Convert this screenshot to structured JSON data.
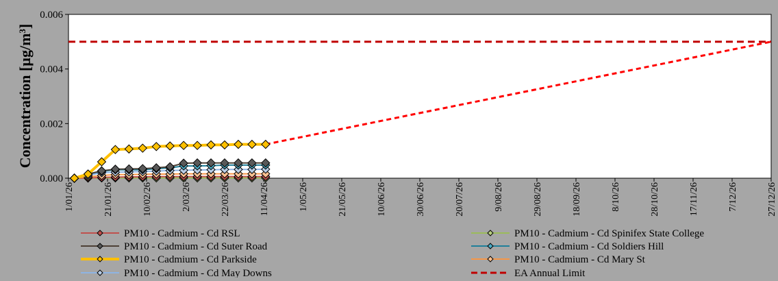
{
  "chart_data": {
    "type": "line",
    "title": "",
    "ylabel_main": "Concentration [µg/m",
    "ylabel_sup": "3",
    "ylabel_close": "]",
    "xlabel": "",
    "ylim": [
      0,
      0.006
    ],
    "yticks": [
      "0.000",
      "0.002",
      "0.004",
      "0.006"
    ],
    "ytick_values": [
      0,
      0.002,
      0.004,
      0.006
    ],
    "xlim": [
      "2026-01-01",
      "2026-12-27"
    ],
    "xtick_labels": [
      "1/01/26",
      "21/01/26",
      "10/02/26",
      "2/03/26",
      "22/03/26",
      "11/04/26",
      "1/05/26",
      "21/05/26",
      "10/06/26",
      "30/06/26",
      "20/07/26",
      "9/08/26",
      "29/08/26",
      "18/09/26",
      "8/10/26",
      "28/10/26",
      "17/11/26",
      "7/12/26",
      "27/12/26"
    ],
    "xtick_dates": [
      "2026-01-01",
      "2026-01-21",
      "2026-02-10",
      "2026-03-02",
      "2026-03-22",
      "2026-04-11",
      "2026-05-01",
      "2026-05-21",
      "2026-06-10",
      "2026-06-30",
      "2026-07-20",
      "2026-08-09",
      "2026-08-29",
      "2026-09-18",
      "2026-10-08",
      "2026-10-28",
      "2026-11-17",
      "2026-12-07",
      "2026-12-27"
    ],
    "grid": false,
    "legend_position": "bottom",
    "x": [
      "2026-01-04",
      "2026-01-11",
      "2026-01-18",
      "2026-01-25",
      "2026-02-01",
      "2026-02-08",
      "2026-02-15",
      "2026-02-22",
      "2026-03-01",
      "2026-03-08",
      "2026-03-15",
      "2026-03-22",
      "2026-03-29",
      "2026-04-05",
      "2026-04-12"
    ],
    "series": [
      {
        "name": "PM10 - Cadmium - Cd RSL",
        "color": "#c0504d",
        "marker_fill": "#c0504d",
        "line_width": 2,
        "values": [
          0,
          1e-05,
          3e-05,
          4e-05,
          5e-05,
          5e-05,
          6e-05,
          6e-05,
          6e-05,
          6e-05,
          6e-05,
          6e-05,
          6e-05,
          6e-05,
          6e-05
        ]
      },
      {
        "name": "PM10 - Cadmium - Cd Spinifex State College",
        "color": "#9bbb59",
        "marker_fill": "#b7cf80",
        "line_width": 2,
        "values": [
          0,
          5e-06,
          1e-05,
          1e-05,
          1e-05,
          1e-05,
          1e-05,
          1e-05,
          1e-05,
          1e-05,
          1e-05,
          1e-05,
          1e-05,
          1e-05,
          1e-05
        ]
      },
      {
        "name": "PM10 - Cadmium - Cd Suter Road",
        "color": "#4d4136",
        "marker_fill": "#595959",
        "line_width": 2,
        "values": [
          0,
          0.00015,
          0.00027,
          0.00033,
          0.00034,
          0.00035,
          0.00038,
          0.00042,
          0.00055,
          0.00056,
          0.00056,
          0.00056,
          0.00056,
          0.00056,
          0.00056
        ]
      },
      {
        "name": "PM10 - Cadmium - Cd Soldiers Hill",
        "color": "#1f7f9a",
        "marker_fill": "#4bacc6",
        "line_width": 2,
        "values": [
          0,
          0.00015,
          0.00025,
          0.00031,
          0.00031,
          0.00031,
          0.00035,
          0.00038,
          0.00045,
          0.00045,
          0.00046,
          0.00048,
          0.00048,
          0.00048,
          0.00048
        ]
      },
      {
        "name": "PM10 - Cadmium - Cd Parkside",
        "color": "#ffc000",
        "marker_fill": "#ffc000",
        "line_width": 4,
        "values": [
          0,
          0.00015,
          0.0006,
          0.00105,
          0.00107,
          0.0011,
          0.00116,
          0.00118,
          0.0012,
          0.0012,
          0.00122,
          0.00122,
          0.00124,
          0.00124,
          0.00124
        ]
      },
      {
        "name": "PM10 - Cadmium - Cd Mary St",
        "color": "#f79646",
        "marker_fill": "#fac090",
        "line_width": 2,
        "values": [
          0,
          5e-05,
          0.0001,
          0.00013,
          0.00013,
          0.00014,
          0.00015,
          0.00015,
          0.00016,
          0.00016,
          0.00016,
          0.00016,
          0.00016,
          0.00016,
          0.00016
        ]
      },
      {
        "name": "PM10 - Cadmium - Cd May Downs",
        "color": "#8eb4e3",
        "marker_fill": "#b9cde5",
        "line_width": 2,
        "values": [
          0,
          0.0001,
          0.0002,
          0.00022,
          0.00023,
          0.00024,
          0.00026,
          0.00028,
          0.00029,
          0.0003,
          0.00031,
          0.00032,
          0.00032,
          0.00032,
          0.00033
        ]
      }
    ],
    "limit_line": {
      "name": "EA Annual Limit",
      "value": 0.005,
      "color": "#c00000"
    },
    "trajectory": {
      "from": [
        "2026-04-12",
        0.00124
      ],
      "to": [
        "2026-12-27",
        0.005
      ],
      "color": "#ff0000"
    }
  }
}
